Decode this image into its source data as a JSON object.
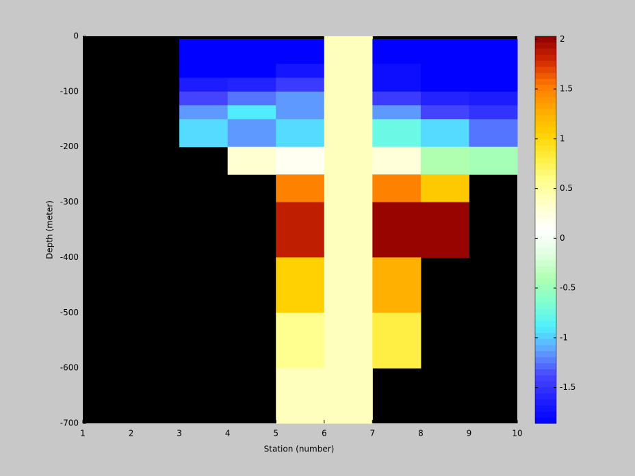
{
  "chart_data": {
    "type": "heatmap",
    "x_label": "Station (number)",
    "y_label": "Depth (meter)",
    "x_edges": [
      1,
      2,
      3,
      4,
      5,
      6,
      7,
      8,
      9,
      10
    ],
    "y_edges": [
      0,
      -5,
      -50,
      -75,
      -100,
      -125,
      -150,
      -200,
      -250,
      -300,
      -400,
      -500,
      -600,
      -700
    ],
    "values": [
      [
        null,
        null,
        null,
        null,
        null,
        0.4,
        null,
        null,
        null
      ],
      [
        null,
        null,
        -1.85,
        -1.85,
        -1.85,
        0.4,
        -1.85,
        -1.85,
        -1.85
      ],
      [
        null,
        null,
        -1.85,
        -1.85,
        -1.7,
        0.4,
        -1.75,
        -1.85,
        -1.85
      ],
      [
        null,
        null,
        -1.65,
        -1.6,
        -1.45,
        0.4,
        -1.75,
        -1.85,
        -1.85
      ],
      [
        null,
        null,
        -1.4,
        -1.25,
        -1.15,
        0.4,
        -1.45,
        -1.6,
        -1.65
      ],
      [
        null,
        null,
        -1.15,
        -0.9,
        -1.15,
        0.4,
        -1.15,
        -1.4,
        -1.5
      ],
      [
        null,
        null,
        -0.95,
        -1.15,
        -0.95,
        0.4,
        -0.75,
        -0.95,
        -1.25
      ],
      [
        null,
        null,
        null,
        0.32,
        0.15,
        0.4,
        0.28,
        -0.4,
        -0.45
      ],
      [
        null,
        null,
        null,
        null,
        1.5,
        0.4,
        1.5,
        1.1,
        null
      ],
      [
        null,
        null,
        null,
        null,
        1.85,
        0.4,
        2.0,
        2.0,
        null
      ],
      [
        null,
        null,
        null,
        null,
        1.05,
        0.4,
        1.25,
        null,
        null
      ],
      [
        null,
        null,
        null,
        null,
        0.57,
        0.4,
        0.8,
        null,
        null
      ],
      [
        null,
        null,
        null,
        null,
        0.4,
        0.4,
        null,
        null,
        null
      ]
    ],
    "xlim": [
      1,
      10
    ],
    "ylim": [
      -700,
      0
    ],
    "xticks": [
      1,
      2,
      3,
      4,
      5,
      6,
      7,
      8,
      9,
      10
    ],
    "yticks": [
      0,
      -100,
      -200,
      -300,
      -400,
      -500,
      -600,
      -700
    ],
    "clim": [
      -1.86,
      2.03
    ],
    "cticks": [
      -1.5,
      -1,
      -0.5,
      0,
      0.5,
      1,
      1.5,
      2
    ],
    "colormap": [
      "#0000ff",
      "#2020ff",
      "#4848ff",
      "#60a0ff",
      "#50f0ff",
      "#80ffd0",
      "#b0ffb0",
      "#e0ffe0",
      "#ffffff",
      "#ffffd0",
      "#ffff90",
      "#ffee40",
      "#ffd000",
      "#ffa800",
      "#ff7800",
      "#d02800",
      "#900000"
    ],
    "background": "#000000"
  }
}
